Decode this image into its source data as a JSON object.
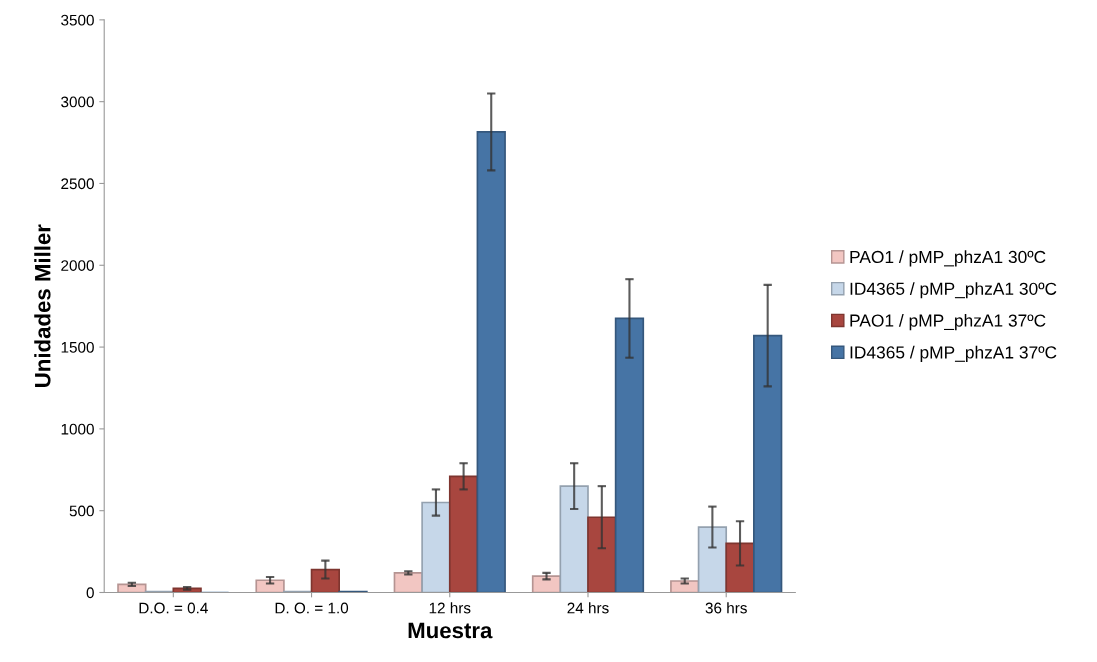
{
  "chart_data": {
    "type": "bar",
    "xlabel": "Muestra",
    "ylabel": "Unidades Miller",
    "categories": [
      "D.O. = 0.4",
      "D. O. = 1.0",
      "12 hrs",
      "24 hrs",
      "36 hrs"
    ],
    "series": [
      {
        "name": "PAO1 / pMP_phzA1 30ºC",
        "color": "#f2c6c2",
        "values": [
          50,
          75,
          120,
          100,
          70
        ],
        "errors": [
          10,
          20,
          10,
          20,
          15
        ]
      },
      {
        "name": "ID4365 / pMP_phzA1 30ºC",
        "color": "#c6d7e9",
        "values": [
          5,
          5,
          550,
          650,
          400
        ],
        "errors": [
          null,
          null,
          80,
          140,
          125
        ]
      },
      {
        "name": "PAO1 / pMP_phzA1 37ºC",
        "color": "#a8463f",
        "values": [
          25,
          140,
          710,
          460,
          300
        ],
        "errors": [
          8,
          55,
          80,
          190,
          135
        ]
      },
      {
        "name": "ID4365 / pMP_phzA1 37ºC",
        "color": "#4674a5",
        "values": [
          0,
          5,
          2815,
          1675,
          1570
        ],
        "errors": [
          null,
          null,
          235,
          240,
          310
        ]
      }
    ],
    "ylim": [
      0,
      3500
    ],
    "yticks": [
      0,
      500,
      1000,
      1500,
      2000,
      2500,
      3000,
      3500
    ],
    "grid": false,
    "legend": "right"
  }
}
